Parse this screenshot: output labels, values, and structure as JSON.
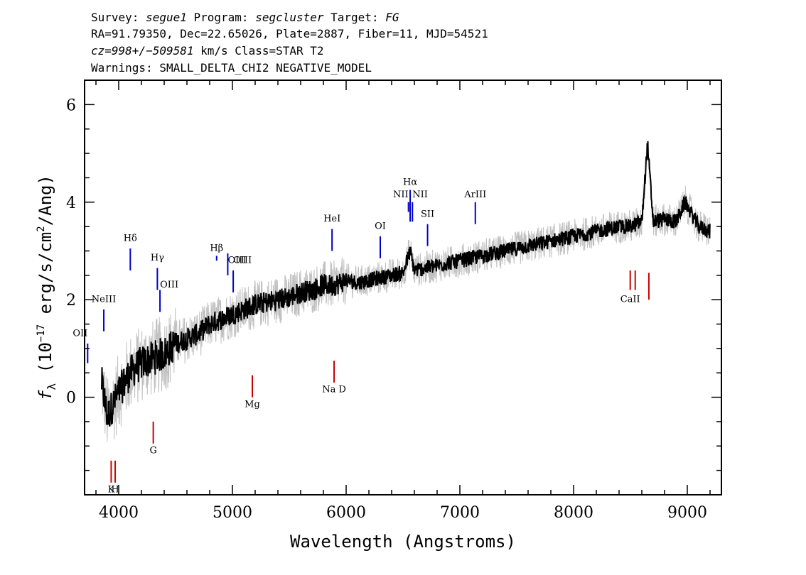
{
  "header": {
    "line1": [
      {
        "text": "Survey: ",
        "italic": false
      },
      {
        "text": "segue1",
        "italic": true
      },
      {
        "text": " Program: ",
        "italic": false
      },
      {
        "text": "segcluster",
        "italic": true
      },
      {
        "text": " Target: ",
        "italic": false
      },
      {
        "text": "FG",
        "italic": true
      }
    ],
    "line2": "RA=91.79350, Dec=22.65026, Plate=2887, Fiber=11, MJD=54521",
    "line3": [
      {
        "text": "cz=998+/−509581",
        "italic": true
      },
      {
        "text": " km/s Class=STAR T2",
        "italic": false
      }
    ],
    "line4": "Warnings: SMALL_DELTA_CHI2 NEGATIVE_MODEL"
  },
  "chart_data": {
    "type": "line",
    "xlabel": "Wavelength (Angstroms)",
    "ylabel_main": "f",
    "ylabel_sub": "λ",
    "ylabel_pre": " (10",
    "ylabel_exp1": "−17",
    "ylabel_mid": " erg/s/cm",
    "ylabel_exp2": "2",
    "ylabel_post": "/Ang)",
    "xlim": [
      3700,
      9300
    ],
    "ylim": [
      -2.0,
      6.5
    ],
    "x_ticks": [
      4000,
      5000,
      6000,
      7000,
      8000,
      9000
    ],
    "x_tick_labels": [
      "4000",
      "5000",
      "6000",
      "7000",
      "8000",
      "9000"
    ],
    "y_ticks": [
      0,
      2,
      4,
      6
    ],
    "y_tick_labels": [
      "0",
      "2",
      "4",
      "6"
    ],
    "series": [
      {
        "role": "raw_flux",
        "color": "#c0c0c0",
        "x": [
          3850,
          3900,
          4000,
          4100,
          4200,
          4300,
          4400,
          4500,
          4600,
          4700,
          4800,
          4900,
          5000,
          5100,
          5200,
          5300,
          5400,
          5500,
          5600,
          5700,
          5800,
          5900,
          6000,
          6100,
          6200,
          6300,
          6400,
          6500,
          6563,
          6600,
          6700,
          6800,
          6900,
          7000,
          7100,
          7200,
          7300,
          7400,
          7500,
          7600,
          7700,
          7800,
          7900,
          8000,
          8100,
          8200,
          8300,
          8400,
          8500,
          8600,
          8650,
          8700,
          8800,
          8900,
          8980,
          9100,
          9200
        ],
        "y": [
          0.3,
          -0.4,
          0.1,
          0.5,
          0.7,
          0.8,
          0.9,
          1.1,
          1.2,
          1.3,
          1.5,
          1.6,
          1.7,
          1.8,
          1.9,
          1.95,
          2.0,
          2.05,
          2.15,
          2.2,
          2.3,
          2.3,
          2.4,
          2.35,
          2.4,
          2.45,
          2.5,
          2.55,
          3.0,
          2.6,
          2.65,
          2.7,
          2.75,
          2.8,
          2.85,
          2.9,
          2.95,
          3.0,
          3.05,
          3.1,
          3.15,
          3.2,
          3.25,
          3.3,
          3.35,
          3.4,
          3.45,
          3.5,
          3.5,
          3.6,
          5.2,
          3.6,
          3.65,
          3.6,
          4.0,
          3.5,
          3.4
        ]
      },
      {
        "role": "smoothed_flux",
        "color": "#000000",
        "x": [
          3850,
          3900,
          4000,
          4100,
          4200,
          4300,
          4400,
          4500,
          4600,
          4700,
          4800,
          4900,
          5000,
          5100,
          5200,
          5300,
          5400,
          5500,
          5600,
          5700,
          5800,
          5900,
          6000,
          6100,
          6200,
          6300,
          6400,
          6500,
          6563,
          6600,
          6700,
          6800,
          6900,
          7000,
          7100,
          7200,
          7300,
          7400,
          7500,
          7600,
          7700,
          7800,
          7900,
          8000,
          8100,
          8200,
          8300,
          8400,
          8500,
          8600,
          8650,
          8700,
          8800,
          8900,
          8980,
          9100,
          9200
        ],
        "y": [
          0.3,
          -0.4,
          0.1,
          0.5,
          0.7,
          0.8,
          0.9,
          1.1,
          1.2,
          1.3,
          1.5,
          1.6,
          1.7,
          1.8,
          1.9,
          1.95,
          2.0,
          2.05,
          2.15,
          2.2,
          2.3,
          2.3,
          2.4,
          2.35,
          2.4,
          2.45,
          2.5,
          2.55,
          3.0,
          2.6,
          2.65,
          2.7,
          2.75,
          2.8,
          2.85,
          2.9,
          2.95,
          3.0,
          3.05,
          3.1,
          3.15,
          3.2,
          3.25,
          3.3,
          3.35,
          3.4,
          3.45,
          3.5,
          3.5,
          3.6,
          5.2,
          3.6,
          3.65,
          3.6,
          4.0,
          3.5,
          3.4
        ]
      }
    ],
    "emission_lines": [
      {
        "label": "OII",
        "wl": 3727,
        "y0": 0.7,
        "y1": 1.1,
        "ly": 1.25,
        "anchor": "end"
      },
      {
        "label": "NeIII",
        "wl": 3869,
        "y0": 1.35,
        "y1": 1.8,
        "ly": 1.95,
        "anchor": "middle"
      },
      {
        "label": "Hδ",
        "wl": 4102,
        "y0": 2.6,
        "y1": 3.05,
        "ly": 3.2,
        "anchor": "middle"
      },
      {
        "label": "Hγ",
        "wl": 4340,
        "y0": 2.2,
        "y1": 2.65,
        "ly": 2.8,
        "anchor": "middle"
      },
      {
        "label": "OIII",
        "wl": 4363,
        "y0": 1.75,
        "y1": 2.2,
        "ly": 2.25,
        "anchor": "start"
      },
      {
        "label": "Hβ",
        "wl": 4861,
        "y0": 2.8,
        "y1": 2.9,
        "ly": 3.0,
        "anchor": "middle"
      },
      {
        "label": "OIII",
        "wl": 4959,
        "y0": 2.5,
        "y1": 2.95,
        "ly": 2.75,
        "anchor": "start"
      },
      {
        "label": "OIII",
        "wl": 5007,
        "y0": 2.15,
        "y1": 2.6,
        "ly": 2.75,
        "anchor": "start"
      },
      {
        "label": "HeI",
        "wl": 5876,
        "y0": 3.0,
        "y1": 3.45,
        "ly": 3.6,
        "anchor": "middle"
      },
      {
        "label": "OI",
        "wl": 6300,
        "y0": 2.85,
        "y1": 3.3,
        "ly": 3.45,
        "anchor": "middle"
      },
      {
        "label": "NII",
        "wl": 6548,
        "y0": 3.8,
        "y1": 4.0,
        "ly": 4.1,
        "anchor": "end"
      },
      {
        "label": "Hα",
        "wl": 6563,
        "y0": 3.6,
        "y1": 4.25,
        "ly": 4.35,
        "anchor": "middle"
      },
      {
        "label": "NII",
        "wl": 6583,
        "y0": 3.6,
        "y1": 4.0,
        "ly": 4.1,
        "anchor": "start"
      },
      {
        "label": "SII",
        "wl": 6716,
        "y0": 3.1,
        "y1": 3.55,
        "ly": 3.7,
        "anchor": "middle"
      },
      {
        "label": "ArIII",
        "wl": 7136,
        "y0": 3.55,
        "y1": 4.0,
        "ly": 4.1,
        "anchor": "middle"
      }
    ],
    "absorption_lines": [
      {
        "label": "K",
        "wl": 3934,
        "y0": -1.75,
        "y1": -1.3,
        "ly": -1.95,
        "anchor": "middle"
      },
      {
        "label": "H",
        "wl": 3969,
        "y0": -1.75,
        "y1": -1.3,
        "ly": -1.95,
        "anchor": "middle"
      },
      {
        "label": "G",
        "wl": 4304,
        "y0": -0.95,
        "y1": -0.5,
        "ly": -1.15,
        "anchor": "middle"
      },
      {
        "label": "Mg",
        "wl": 5175,
        "y0": 0.0,
        "y1": 0.45,
        "ly": -0.2,
        "anchor": "middle"
      },
      {
        "label": "Na  D",
        "wl": 5894,
        "y0": 0.3,
        "y1": 0.75,
        "ly": 0.1,
        "anchor": "middle"
      },
      {
        "label": "CaII",
        "wl": 8498,
        "y0": 2.2,
        "y1": 2.6,
        "ly": 1.95,
        "anchor": "middle"
      },
      {
        "label": "",
        "wl": 8542,
        "y0": 2.2,
        "y1": 2.6,
        "ly": 1.95,
        "anchor": "middle"
      },
      {
        "label": "",
        "wl": 8662,
        "y0": 2.0,
        "y1": 2.55,
        "ly": 1.95,
        "anchor": "middle"
      }
    ],
    "emission_color": "#0000cc",
    "absorption_color": "#cc0000"
  }
}
